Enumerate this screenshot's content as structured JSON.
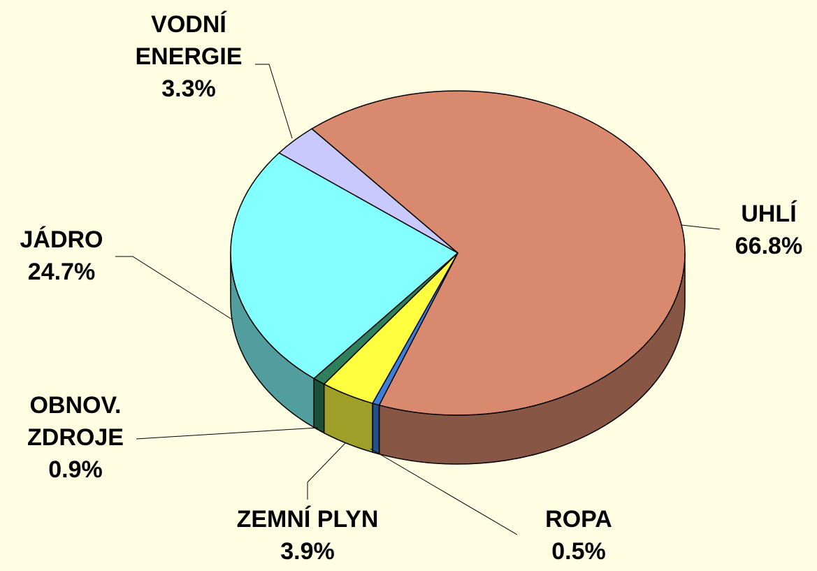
{
  "chart_data": {
    "type": "pie",
    "categories": [
      "UHLÍ",
      "ROPA",
      "ZEMNÍ PLYN",
      "OBNOV. ZDROJE",
      "JÁDRO",
      "VODNÍ ENERGIE"
    ],
    "values": [
      66.8,
      0.5,
      3.9,
      0.9,
      24.7,
      3.3
    ],
    "value_labels": [
      "66.8%",
      "0.5%",
      "3.9%",
      "0.9%",
      "24.7%",
      "3.3%"
    ],
    "colors": [
      "#d98a6e",
      "#3b7fd9",
      "#ffff40",
      "#2f7f5c",
      "#84ffff",
      "#c9c9ff"
    ],
    "three_d": true
  }
}
